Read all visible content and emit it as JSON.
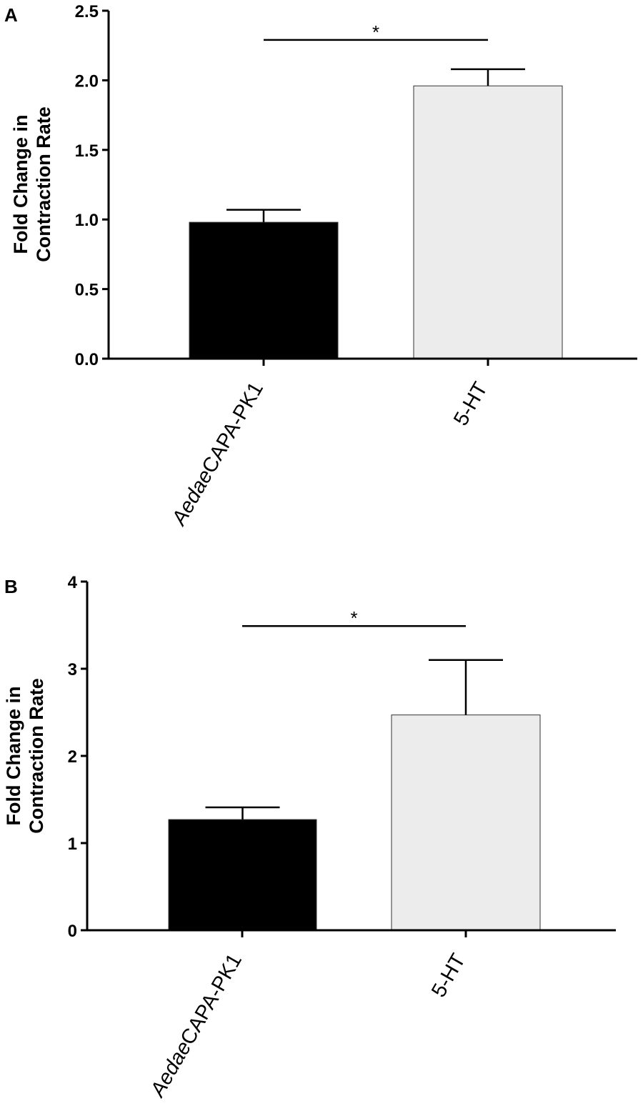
{
  "chart_data": [
    {
      "type": "bar",
      "panel_label": "A",
      "categories": [
        {
          "italic": "Aedae",
          "rest": "CAPA-PK1"
        },
        {
          "italic": "",
          "rest": "5-HT"
        }
      ],
      "values": [
        0.98,
        1.96
      ],
      "error": [
        0.09,
        0.12
      ],
      "bar_colors": [
        "#000000",
        "#ececec"
      ],
      "ylabel_lines": [
        "Fold Change in",
        "Contraction Rate"
      ],
      "ylim": [
        0,
        2.5
      ],
      "yticks": [
        "0.0",
        "0.5",
        "1.0",
        "1.5",
        "2.0",
        "2.5"
      ],
      "significance": {
        "from": 0,
        "to": 1,
        "label": "*",
        "y": 2.29
      },
      "grid": false
    },
    {
      "type": "bar",
      "panel_label": "B",
      "categories": [
        {
          "italic": "Aedae",
          "rest": "CAPA-PK1"
        },
        {
          "italic": "",
          "rest": "5-HT"
        }
      ],
      "values": [
        1.27,
        2.47
      ],
      "error": [
        0.14,
        0.63
      ],
      "bar_colors": [
        "#000000",
        "#ececec"
      ],
      "ylabel_lines": [
        "Fold Change in",
        "Contraction Rate"
      ],
      "ylim": [
        0,
        4
      ],
      "yticks": [
        "0",
        "1",
        "2",
        "3",
        "4"
      ],
      "significance": {
        "from": 0,
        "to": 1,
        "label": "*",
        "y": 3.49
      },
      "grid": false
    }
  ]
}
